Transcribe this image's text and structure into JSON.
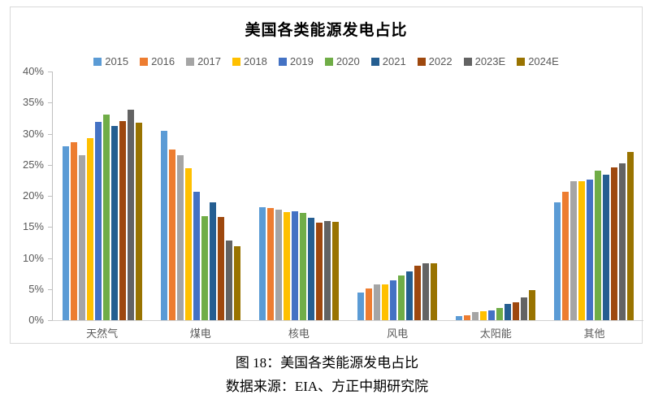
{
  "captions": {
    "figure": "图 18：美国各类能源发电占比",
    "source": "数据来源：EIA、方正中期研究院"
  },
  "chart_data": {
    "type": "bar",
    "title": "美国各类能源发电占比",
    "categories": [
      "天然气",
      "煤电",
      "核电",
      "风电",
      "太阳能",
      "其他"
    ],
    "series": [
      {
        "name": "2015",
        "color": "#5B9BD5",
        "values": [
          28.0,
          30.5,
          18.2,
          4.4,
          0.6,
          19.0
        ]
      },
      {
        "name": "2016",
        "color": "#ED7D31",
        "values": [
          28.6,
          27.5,
          18.0,
          5.1,
          0.8,
          20.6
        ]
      },
      {
        "name": "2017",
        "color": "#A5A5A5",
        "values": [
          26.6,
          26.5,
          17.8,
          5.8,
          1.3,
          22.4
        ]
      },
      {
        "name": "2018",
        "color": "#FFC000",
        "values": [
          29.3,
          24.4,
          17.4,
          5.7,
          1.4,
          22.3
        ]
      },
      {
        "name": "2019",
        "color": "#4472C4",
        "values": [
          31.9,
          20.7,
          17.5,
          6.4,
          1.6,
          22.6
        ]
      },
      {
        "name": "2020",
        "color": "#70AD47",
        "values": [
          33.1,
          16.8,
          17.2,
          7.2,
          2.0,
          24.1
        ]
      },
      {
        "name": "2021",
        "color": "#255E91",
        "values": [
          31.3,
          19.0,
          16.5,
          7.9,
          2.6,
          23.4
        ]
      },
      {
        "name": "2022",
        "color": "#9E480E",
        "values": [
          32.0,
          16.6,
          15.7,
          8.8,
          2.9,
          24.6
        ]
      },
      {
        "name": "2023E",
        "color": "#636363",
        "values": [
          33.9,
          12.8,
          15.9,
          9.1,
          3.7,
          25.3
        ]
      },
      {
        "name": "2024E",
        "color": "#997300",
        "values": [
          31.8,
          11.9,
          15.8,
          9.2,
          4.8,
          27.1
        ]
      }
    ],
    "ylim": [
      0,
      40
    ],
    "ytick_step": 5,
    "ytick_labels": [
      "0%",
      "5%",
      "10%",
      "15%",
      "20%",
      "25%",
      "30%",
      "35%",
      "40%"
    ],
    "grid": false,
    "legend_position": "top",
    "axis_color": "#BFBFBF",
    "text_color": "#595959"
  }
}
